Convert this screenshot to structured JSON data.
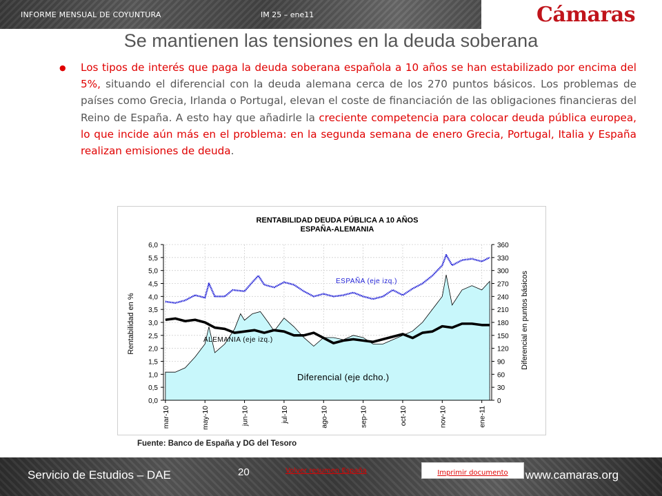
{
  "header": {
    "left_text": "INFORME MENSUAL DE COYUNTURA",
    "mid_text": "IM 25 – ene11",
    "logo_text": "Cámaras",
    "logo_color": "#c0141b"
  },
  "slide": {
    "title": "Se mantienen las tensiones en la deuda soberana",
    "paragraph": {
      "s1": "Los tipos de interés que paga la deuda soberana española a 10 años se han estabilizado por encima del 5%,",
      "s2": " situando el diferencial con la deuda alemana cerca de los 270 puntos básicos. Los problemas de países como Grecia, Irlanda o Portugal, elevan el coste de financiación de las obligaciones financieras del Reino de España. A esto hay que añadirle la ",
      "s3": "creciente competencia para colocar deuda pública europea, lo que incide aún más en el problema: en la segunda semana de enero Grecia, Portugal, Italia y España realizan emisiones de deuda",
      "s4": "."
    },
    "source": "Fuente: Banco de España y DG del Tesoro"
  },
  "chart_data": {
    "type": "line",
    "title": "RENTABILIDAD DEUDA PÚBLICA A 10 AÑOS",
    "subtitle": "ESPAÑA-ALEMANIA",
    "ylabel": "Rentabilidad en %",
    "y2label": "Diferencial en puntos básicos",
    "ylim": [
      0,
      6
    ],
    "y2lim": [
      0,
      360
    ],
    "y_ticks": [
      "0,0",
      "0,5",
      "1,0",
      "1,5",
      "2,0",
      "2,5",
      "3,0",
      "3,5",
      "4,0",
      "4,5",
      "5,0",
      "5,5",
      "6,0"
    ],
    "y2_ticks": [
      "0",
      "30",
      "60",
      "90",
      "120",
      "150",
      "180",
      "210",
      "240",
      "270",
      "300",
      "330",
      "360"
    ],
    "x_ticks": [
      "mar-10",
      "may-10",
      "jun-10",
      "jul-10",
      "ago-10",
      "sep-10",
      "oct-10",
      "nov-10",
      "ene-11"
    ],
    "x_tick_positions": [
      0,
      1,
      2,
      3,
      4,
      5,
      6,
      7,
      8
    ],
    "grid": true,
    "annotations": {
      "espana": "ESPAÑA (eje izq.)",
      "alemania": "ALEMANIA (eje izq.)",
      "diferencial": "Diferencial (eje dcho.)"
    },
    "colors": {
      "espana": "#1f1fd6",
      "alemania": "#000000",
      "diferencial_fill": "#c8f7fb",
      "diferencial_line": "#000000"
    },
    "series": [
      {
        "name": "ESPAÑA",
        "axis": "left",
        "x": [
          0,
          0.25,
          0.5,
          0.75,
          1.0,
          1.1,
          1.25,
          1.5,
          1.7,
          2.0,
          2.2,
          2.35,
          2.5,
          2.75,
          3.0,
          3.25,
          3.5,
          3.75,
          4.0,
          4.25,
          4.5,
          4.75,
          5.0,
          5.25,
          5.5,
          5.75,
          6.0,
          6.25,
          6.5,
          6.75,
          7.0,
          7.1,
          7.25,
          7.5,
          7.75,
          8.0,
          8.2
        ],
        "values": [
          3.8,
          3.75,
          3.85,
          4.05,
          3.95,
          4.5,
          4.0,
          4.0,
          4.25,
          4.2,
          4.55,
          4.8,
          4.45,
          4.35,
          4.55,
          4.45,
          4.2,
          4.0,
          4.1,
          4.0,
          4.05,
          4.15,
          4.0,
          3.9,
          4.0,
          4.25,
          4.05,
          4.3,
          4.5,
          4.8,
          5.2,
          5.6,
          5.2,
          5.4,
          5.45,
          5.35,
          5.5
        ]
      },
      {
        "name": "ALEMANIA",
        "axis": "left",
        "x": [
          0,
          0.25,
          0.5,
          0.75,
          1.0,
          1.25,
          1.5,
          1.75,
          2.0,
          2.25,
          2.5,
          2.75,
          3.0,
          3.25,
          3.5,
          3.75,
          4.0,
          4.25,
          4.5,
          4.75,
          5.0,
          5.25,
          5.5,
          5.75,
          6.0,
          6.25,
          6.5,
          6.75,
          7.0,
          7.25,
          7.5,
          7.75,
          8.0,
          8.2
        ],
        "values": [
          3.1,
          3.15,
          3.05,
          3.1,
          3.0,
          2.8,
          2.75,
          2.6,
          2.65,
          2.7,
          2.6,
          2.7,
          2.65,
          2.5,
          2.5,
          2.6,
          2.4,
          2.2,
          2.3,
          2.35,
          2.3,
          2.25,
          2.35,
          2.45,
          2.55,
          2.4,
          2.6,
          2.65,
          2.85,
          2.8,
          2.95,
          2.95,
          2.9,
          2.9
        ]
      },
      {
        "name": "Diferencial",
        "axis": "right",
        "x": [
          0,
          0.25,
          0.5,
          0.75,
          1.0,
          1.1,
          1.25,
          1.5,
          1.75,
          1.9,
          2.0,
          2.2,
          2.4,
          2.6,
          2.75,
          3.0,
          3.25,
          3.5,
          3.75,
          4.0,
          4.25,
          4.5,
          4.75,
          5.0,
          5.25,
          5.5,
          5.75,
          6.0,
          6.25,
          6.5,
          6.75,
          7.0,
          7.1,
          7.25,
          7.5,
          7.75,
          8.0,
          8.2
        ],
        "values": [
          65,
          65,
          75,
          100,
          130,
          170,
          110,
          130,
          165,
          200,
          185,
          200,
          205,
          180,
          160,
          190,
          170,
          145,
          125,
          145,
          145,
          140,
          150,
          145,
          130,
          130,
          140,
          150,
          160,
          180,
          210,
          240,
          290,
          220,
          255,
          265,
          255,
          275
        ]
      }
    ]
  },
  "footer": {
    "left": "Servicio de Estudios – DAE",
    "page": "20",
    "link_back": "Volver resumen España",
    "link_print": "Imprimir documento",
    "right": "www.camaras.org"
  }
}
